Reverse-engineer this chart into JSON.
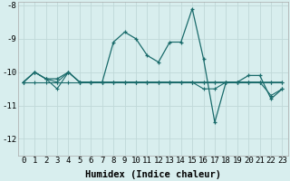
{
  "title": "",
  "xlabel": "Humidex (Indice chaleur)",
  "bg_color": "#d8eeee",
  "grid_color": "#c0d8d8",
  "line_color": "#1a6b6b",
  "x_values": [
    0,
    1,
    2,
    3,
    4,
    5,
    6,
    7,
    8,
    9,
    10,
    11,
    12,
    13,
    14,
    15,
    16,
    17,
    18,
    19,
    20,
    21,
    22,
    23
  ],
  "main_series": [
    -10.3,
    -10.0,
    -10.2,
    -10.2,
    -10.0,
    -10.3,
    -10.3,
    -10.3,
    -9.1,
    -8.8,
    -9.0,
    -9.5,
    -9.7,
    -9.1,
    -9.1,
    -8.1,
    -9.6,
    -11.5,
    -10.3,
    -10.3,
    -10.1,
    -10.1,
    -10.8,
    -10.5
  ],
  "flat_series1": [
    -10.3,
    -10.3,
    -10.3,
    -10.3,
    -10.3,
    -10.3,
    -10.3,
    -10.3,
    -10.3,
    -10.3,
    -10.3,
    -10.3,
    -10.3,
    -10.3,
    -10.3,
    -10.3,
    -10.3,
    -10.3,
    -10.3,
    -10.3,
    -10.3,
    -10.3,
    -10.3,
    -10.3
  ],
  "flat_series2": [
    -10.3,
    -10.0,
    -10.2,
    -10.5,
    -10.0,
    -10.3,
    -10.3,
    -10.3,
    -10.3,
    -10.3,
    -10.3,
    -10.3,
    -10.3,
    -10.3,
    -10.3,
    -10.3,
    -10.5,
    -10.5,
    -10.3,
    -10.3,
    -10.3,
    -10.3,
    -10.7,
    -10.5
  ],
  "flat_series3": [
    -10.3,
    -10.0,
    -10.2,
    -10.3,
    -10.0,
    -10.3,
    -10.3,
    -10.3,
    -10.3,
    -10.3,
    -10.3,
    -10.3,
    -10.3,
    -10.3,
    -10.3,
    -10.3,
    -10.3,
    -10.3,
    -10.3,
    -10.3,
    -10.3,
    -10.3,
    -10.3,
    -10.3
  ],
  "ylim": [
    -12.5,
    -7.9
  ],
  "yticks": [
    -12,
    -11,
    -10,
    -9,
    -8
  ],
  "xticks": [
    0,
    1,
    2,
    3,
    4,
    5,
    6,
    7,
    8,
    9,
    10,
    11,
    12,
    13,
    14,
    15,
    16,
    17,
    18,
    19,
    20,
    21,
    22,
    23
  ],
  "tick_fontsize": 6.5,
  "xlabel_fontsize": 7.5
}
